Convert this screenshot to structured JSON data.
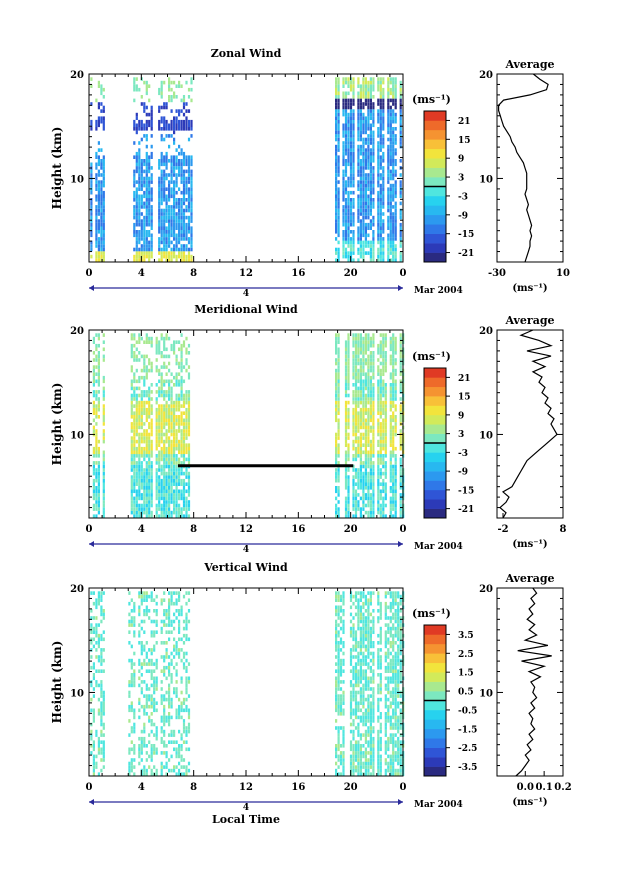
{
  "chart_data": [
    {
      "type": "heatmap",
      "title": "Zonal Wind",
      "xlabel": "",
      "ylabel": "Height (km)",
      "xlim": [
        0,
        24
      ],
      "ylim": [
        2,
        20
      ],
      "xticks": [
        "0",
        "4",
        "8",
        "12",
        "16",
        "20",
        "0"
      ],
      "yticks": [
        "10",
        "20"
      ],
      "day_label": "4",
      "date_label": "Mar 2004",
      "colorbar": {
        "unit": "(ms⁻¹)",
        "ticks": [
          "21",
          "15",
          "9",
          "3",
          "-3",
          "-9",
          "-15",
          "-21"
        ],
        "range": [
          -24,
          24
        ]
      },
      "average": {
        "title": "Average",
        "xlabel": "(ms⁻¹)",
        "xlim": [
          -30,
          10
        ],
        "ylim": [
          2,
          20
        ],
        "xticks": [
          "-30",
          "10"
        ],
        "yticks": [
          "10",
          "20"
        ],
        "profile": [
          [
            -13,
            2
          ],
          [
            -12,
            2.5
          ],
          [
            -11,
            3
          ],
          [
            -10,
            3.5
          ],
          [
            -10,
            4
          ],
          [
            -9,
            4.5
          ],
          [
            -10,
            5
          ],
          [
            -9,
            5.5
          ],
          [
            -10,
            6
          ],
          [
            -11,
            6.5
          ],
          [
            -12,
            7
          ],
          [
            -11,
            7.5
          ],
          [
            -12,
            8
          ],
          [
            -13,
            8.5
          ],
          [
            -12,
            9
          ],
          [
            -12,
            9.5
          ],
          [
            -12,
            10
          ],
          [
            -12,
            10.5
          ],
          [
            -13,
            11
          ],
          [
            -14,
            11.5
          ],
          [
            -16,
            12
          ],
          [
            -18,
            12.5
          ],
          [
            -19,
            13
          ],
          [
            -21,
            13.5
          ],
          [
            -22,
            14
          ],
          [
            -24,
            14.5
          ],
          [
            -26,
            15
          ],
          [
            -27,
            15.5
          ],
          [
            -28,
            16
          ],
          [
            -29,
            16.5
          ],
          [
            -29,
            17
          ],
          [
            -26,
            17.5
          ],
          [
            -10,
            18
          ],
          [
            0,
            18.5
          ],
          [
            1,
            19
          ],
          [
            -4,
            19.5
          ],
          [
            -8,
            20
          ]
        ]
      }
    },
    {
      "type": "heatmap",
      "title": "Meridional Wind",
      "xlabel": "",
      "ylabel": "Height (km)",
      "xlim": [
        0,
        24
      ],
      "ylim": [
        2,
        20
      ],
      "xticks": [
        "0",
        "4",
        "8",
        "12",
        "16",
        "20",
        "0"
      ],
      "yticks": [
        "10",
        "20"
      ],
      "day_label": "4",
      "date_label": "Mar 2004",
      "colorbar": {
        "unit": "(ms⁻¹)",
        "ticks": [
          "21",
          "15",
          "9",
          "3",
          "-3",
          "-9",
          "-15",
          "-21"
        ],
        "range": [
          -24,
          24
        ]
      },
      "average": {
        "title": "Average",
        "xlabel": "(ms⁻¹)",
        "xlim": [
          -3,
          8
        ],
        "ylim": [
          2,
          20
        ],
        "xticks": [
          "-2",
          "8"
        ],
        "yticks": [
          "10",
          "20"
        ],
        "profile": [
          [
            -2,
            2
          ],
          [
            -1.5,
            2.5
          ],
          [
            -2.5,
            3
          ],
          [
            -1.5,
            3.5
          ],
          [
            -1,
            4
          ],
          [
            -2,
            4.5
          ],
          [
            -0.5,
            5
          ],
          [
            0,
            5.5
          ],
          [
            0.5,
            6
          ],
          [
            1,
            6.5
          ],
          [
            1.5,
            7
          ],
          [
            2,
            7.5
          ],
          [
            3,
            8
          ],
          [
            4,
            8.5
          ],
          [
            5,
            9
          ],
          [
            6,
            9.5
          ],
          [
            7,
            10
          ],
          [
            6.5,
            10.5
          ],
          [
            6,
            11
          ],
          [
            6.5,
            11.5
          ],
          [
            5.5,
            12
          ],
          [
            6,
            12.5
          ],
          [
            5,
            13
          ],
          [
            5.5,
            13.5
          ],
          [
            4.5,
            14
          ],
          [
            5,
            14.5
          ],
          [
            4,
            15
          ],
          [
            4.5,
            15.5
          ],
          [
            3,
            16
          ],
          [
            5,
            16.5
          ],
          [
            3,
            17
          ],
          [
            6,
            17.5
          ],
          [
            2,
            18
          ],
          [
            6,
            18.5
          ],
          [
            4,
            19
          ],
          [
            1,
            19.5
          ],
          [
            3,
            20
          ]
        ]
      }
    },
    {
      "type": "heatmap",
      "title": "Vertical Wind",
      "xlabel": "Local Time",
      "ylabel": "Height (km)",
      "xlim": [
        0,
        24
      ],
      "ylim": [
        2,
        20
      ],
      "xticks": [
        "0",
        "4",
        "8",
        "12",
        "16",
        "20",
        "0"
      ],
      "yticks": [
        "10",
        "20"
      ],
      "day_label": "4",
      "date_label": "Mar 2004",
      "colorbar": {
        "unit": "(ms⁻¹)",
        "ticks": [
          "3.5",
          "2.5",
          "1.5",
          "0.5",
          "-0.5",
          "-1.5",
          "-2.5",
          "-3.5"
        ],
        "range": [
          -4,
          4
        ]
      },
      "average": {
        "title": "Average",
        "xlabel": "(ms⁻¹)",
        "xlim": [
          -0.15,
          0.2
        ],
        "ylim": [
          2,
          20
        ],
        "xticks": [
          "0.0",
          "0.1",
          "0.2"
        ],
        "yticks": [
          "10",
          "20"
        ],
        "profile": [
          [
            -0.05,
            2
          ],
          [
            -0.02,
            2.5
          ],
          [
            0.0,
            3
          ],
          [
            0.02,
            3.5
          ],
          [
            0.0,
            4
          ],
          [
            0.03,
            4.5
          ],
          [
            0.01,
            5
          ],
          [
            0.04,
            5.5
          ],
          [
            0.02,
            6
          ],
          [
            0.05,
            6.5
          ],
          [
            0.03,
            7
          ],
          [
            0.04,
            7.5
          ],
          [
            0.02,
            8
          ],
          [
            0.05,
            8.5
          ],
          [
            0.03,
            9
          ],
          [
            0.06,
            9.5
          ],
          [
            0.04,
            10
          ],
          [
            0.05,
            10.5
          ],
          [
            0.03,
            11
          ],
          [
            0.08,
            11.5
          ],
          [
            0.02,
            12
          ],
          [
            0.1,
            12.5
          ],
          [
            -0.02,
            13
          ],
          [
            0.14,
            13.5
          ],
          [
            -0.04,
            14
          ],
          [
            0.12,
            14.5
          ],
          [
            0.0,
            15
          ],
          [
            0.06,
            15.5
          ],
          [
            0.02,
            16
          ],
          [
            0.05,
            16.5
          ],
          [
            0.01,
            17
          ],
          [
            0.04,
            17.5
          ],
          [
            0.02,
            18
          ],
          [
            0.05,
            18.5
          ],
          [
            0.03,
            19
          ],
          [
            0.06,
            19.5
          ],
          [
            0.04,
            20
          ]
        ]
      }
    }
  ],
  "colors": {
    "palette": [
      "#2a2a80",
      "#2c3ab8",
      "#2f55d6",
      "#2f78e8",
      "#2c99ef",
      "#28b8f0",
      "#27d2ef",
      "#4fe6df",
      "#7ce8c0",
      "#a8e98f",
      "#d2ea5a",
      "#f2e43c",
      "#f8c038",
      "#f59331",
      "#ee6a2a",
      "#e03a24"
    ]
  }
}
